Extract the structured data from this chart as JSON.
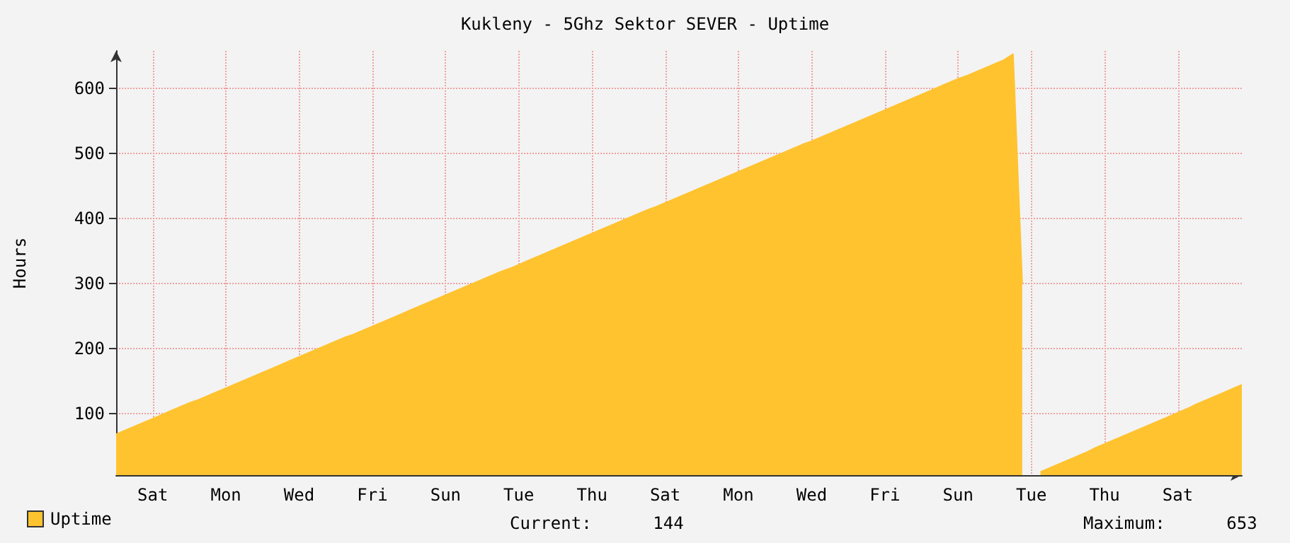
{
  "chart_data": {
    "type": "area",
    "title": "Kukleny - 5Ghz Sektor SEVER - Uptime",
    "ylabel": "Hours",
    "categories": [
      null,
      null,
      null,
      null,
      "Sat",
      null,
      null,
      null,
      null,
      null,
      null,
      null,
      "Mon",
      null,
      null,
      null,
      null,
      null,
      null,
      null,
      "Wed",
      null,
      null,
      null,
      null,
      null,
      null,
      null,
      "Fri",
      null,
      null,
      null,
      null,
      null,
      null,
      null,
      "Sun",
      null,
      null,
      null,
      null,
      null,
      null,
      null,
      "Tue",
      null,
      null,
      null,
      null,
      null,
      null,
      null,
      "Thu",
      null,
      null,
      null,
      null,
      null,
      null,
      null,
      "Sat",
      null,
      null,
      null,
      null,
      null,
      null,
      null,
      "Mon",
      null,
      null,
      null,
      null,
      null,
      null,
      null,
      "Wed",
      null,
      null,
      null,
      null,
      null,
      null,
      null,
      "Fri",
      null,
      null,
      null,
      null,
      null,
      null,
      null,
      "Sun",
      null,
      null,
      null,
      null,
      null,
      null,
      null,
      "Tue",
      null,
      null,
      null,
      null,
      null,
      null,
      null,
      "Thu",
      null,
      null,
      null,
      null,
      null,
      null,
      null,
      "Sat",
      null,
      null,
      null,
      null,
      null,
      null,
      null
    ],
    "series": [
      {
        "name": "Uptime",
        "color": "#ffc330",
        "values": [
          68,
          74,
          80,
          86,
          92,
          98,
          104,
          110,
          116,
          121,
          127,
          133,
          139,
          145,
          151,
          157,
          163,
          169,
          175,
          181,
          187,
          193,
          199,
          205,
          211,
          217,
          222,
          228,
          234,
          240,
          246,
          252,
          258,
          264,
          270,
          276,
          282,
          288,
          294,
          300,
          306,
          312,
          318,
          323,
          329,
          335,
          341,
          347,
          353,
          359,
          365,
          371,
          377,
          383,
          389,
          395,
          401,
          407,
          413,
          418,
          424,
          430,
          436,
          442,
          448,
          454,
          460,
          466,
          472,
          478,
          484,
          490,
          496,
          502,
          508,
          514,
          519,
          525,
          531,
          537,
          543,
          549,
          555,
          561,
          567,
          573,
          579,
          585,
          591,
          597,
          603,
          609,
          615,
          620,
          626,
          632,
          638,
          644,
          653,
          300,
          null,
          10,
          16,
          22,
          28,
          34,
          40,
          47,
          53,
          59,
          65,
          71,
          77,
          83,
          89,
          95,
          101,
          107,
          114,
          120,
          126,
          132,
          138,
          144
        ]
      }
    ],
    "ylim": [
      5,
      658
    ],
    "yticks": [
      100,
      200,
      300,
      400,
      500,
      600
    ],
    "grid": true,
    "legend": "bottom left",
    "marker": "none",
    "annotations": [
      "Current:      144",
      "Maximum:      653"
    ]
  }
}
